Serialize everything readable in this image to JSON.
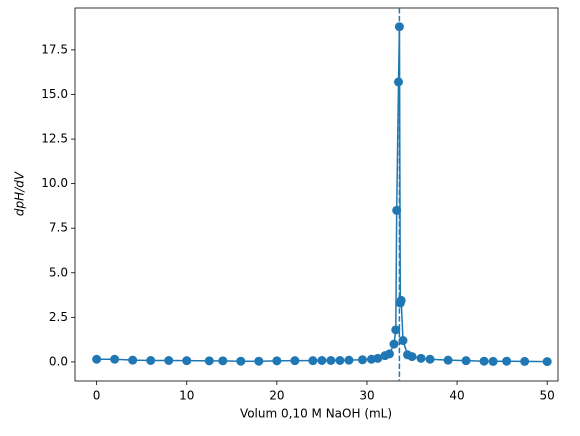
{
  "chart_data": {
    "type": "line",
    "x_label": "Volum 0,10 M NaOH (mL)",
    "y_label": "dpH/dV",
    "x": [
      0,
      2,
      4,
      6,
      8,
      10,
      12.5,
      14,
      16,
      18,
      20,
      22,
      24,
      25,
      26,
      27,
      28,
      29.5,
      30.5,
      31.2,
      32,
      32.5,
      33,
      33.2,
      33.3,
      33.5,
      33.6,
      33.7,
      33.8,
      34,
      34.5,
      35,
      36,
      37,
      39,
      41,
      43,
      44,
      45.5,
      47.5,
      50
    ],
    "series": [
      {
        "color": "#1f77b4",
        "values": [
          0.15,
          0.15,
          0.1,
          0.08,
          0.08,
          0.07,
          0.06,
          0.06,
          0.04,
          0.04,
          0.06,
          0.07,
          0.07,
          0.08,
          0.08,
          0.08,
          0.1,
          0.12,
          0.15,
          0.2,
          0.35,
          0.45,
          1.0,
          1.8,
          8.5,
          15.7,
          18.8,
          3.3,
          3.45,
          1.2,
          0.4,
          0.3,
          0.2,
          0.15,
          0.1,
          0.07,
          0.04,
          0.03,
          0.04,
          0.03,
          0.02
        ]
      }
    ],
    "vline": 33.6,
    "xlim": [
      -2.4,
      51.2
    ],
    "ylim": [
      -1.07,
      19.85
    ],
    "xticks": [
      0,
      10,
      20,
      30,
      40,
      50
    ],
    "yticks": [
      {
        "value": 0,
        "label": "0.0"
      },
      2.5,
      {
        "value": 5,
        "label": "5.0"
      },
      7.5,
      {
        "value": 10,
        "label": "10.0"
      },
      12.5,
      {
        "value": 15,
        "label": "15.0"
      },
      17.5
    ]
  }
}
